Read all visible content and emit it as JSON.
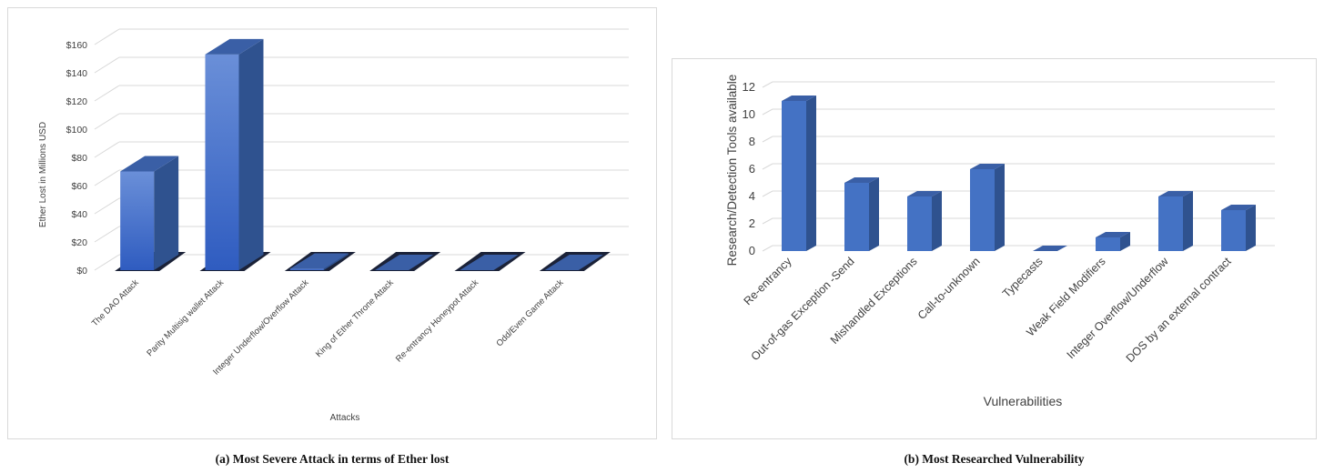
{
  "charts": [
    {
      "chart_data": {
        "type": "bar",
        "categories": [
          "The DAO Attack",
          "Parity Multisig wallet Attack",
          "Integer Underflow/Overflow Attack",
          "King of Ether Throne Attack",
          "Re-entrancy Honeypot Attack",
          "Odd/Even Game Attack"
        ],
        "values": [
          70,
          153,
          1,
          0,
          0,
          0
        ],
        "xlabel": "Attacks",
        "ylabel": "Ether Lost in Millions USD",
        "ylim": [
          0,
          160
        ],
        "yticks": [
          0,
          20,
          40,
          60,
          80,
          100,
          120,
          140,
          160
        ],
        "tick_prefix": "$",
        "grid": true,
        "style": "3d-column"
      },
      "caption": "(a) Most Severe Attack in terms of Ether lost"
    },
    {
      "chart_data": {
        "type": "bar",
        "categories": [
          "Re-entrancy",
          "Out-of-gas Exception -Send",
          "Mishandled Exceptions",
          "Call-to-unknown",
          "Typecasts",
          "Weak Field Modifiers",
          "Integer Overflow/Underflow",
          "DOS by an external contract"
        ],
        "values": [
          11,
          5,
          4,
          6,
          0,
          1,
          4,
          3
        ],
        "xlabel": "Vulnerabilities",
        "ylabel": "Research/Detection Tools available",
        "ylim": [
          0,
          12
        ],
        "yticks": [
          0,
          2,
          4,
          6,
          8,
          10,
          12
        ],
        "tick_prefix": "",
        "grid": true,
        "style": "3d-column"
      },
      "caption": "(b) Most Researched Vulnerability"
    }
  ],
  "colors": {
    "bar_front": "#4472c4",
    "bar_side": "#2f528f",
    "bar_top": "#3a5fa6",
    "bar_a_front_top": "#6a8fd8",
    "bar_a_front_bottom": "#2f5cc0",
    "shadow": "#1b2238",
    "grid": "#d9d9d9",
    "axis_text": "#404040"
  }
}
